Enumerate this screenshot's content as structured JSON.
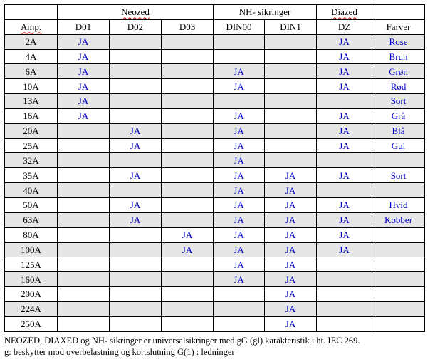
{
  "table": {
    "group_headers": {
      "neozed": "Neozed",
      "nh": "NH- sikringer",
      "diazed": "Diazed"
    },
    "columns": [
      "Amp.",
      "D01",
      "D02",
      "D03",
      "DIN00",
      "DIN1",
      "DZ",
      "Farver"
    ],
    "rows": [
      {
        "cells": [
          "2A",
          "JA",
          "",
          "",
          "",
          "",
          "JA",
          "Rose"
        ]
      },
      {
        "cells": [
          "4A",
          "JA",
          "",
          "",
          "",
          "",
          "JA",
          "Brun"
        ]
      },
      {
        "cells": [
          "6A",
          "JA",
          "",
          "",
          "JA",
          "",
          "JA",
          "Grøn"
        ]
      },
      {
        "cells": [
          "10A",
          "JA",
          "",
          "",
          "JA",
          "",
          "JA",
          "Rød"
        ]
      },
      {
        "cells": [
          "13A",
          "JA",
          "",
          "",
          "",
          "",
          "",
          "Sort"
        ]
      },
      {
        "cells": [
          "16A",
          "JA",
          "",
          "",
          "JA",
          "",
          "JA",
          "Grå"
        ]
      },
      {
        "cells": [
          "20A",
          "",
          "JA",
          "",
          "JA",
          "",
          "JA",
          "Blå"
        ]
      },
      {
        "cells": [
          "25A",
          "",
          "JA",
          "",
          "JA",
          "",
          "JA",
          "Gul"
        ]
      },
      {
        "cells": [
          "32A",
          "",
          "",
          "",
          "JA",
          "",
          "",
          ""
        ]
      },
      {
        "cells": [
          "35A",
          "",
          "JA",
          "",
          "JA",
          "JA",
          "JA",
          "Sort"
        ]
      },
      {
        "cells": [
          "40A",
          "",
          "",
          "",
          "JA",
          "JA",
          "",
          ""
        ]
      },
      {
        "cells": [
          "50A",
          "",
          "JA",
          "",
          "JA",
          "JA",
          "JA",
          "Hvid"
        ]
      },
      {
        "cells": [
          "63A",
          "",
          "JA",
          "",
          "JA",
          "JA",
          "JA",
          "Kobber"
        ]
      },
      {
        "cells": [
          "80A",
          "",
          "",
          "JA",
          "JA",
          "JA",
          "JA",
          ""
        ]
      },
      {
        "cells": [
          "100A",
          "",
          "",
          "JA",
          "JA",
          "JA",
          "JA",
          ""
        ]
      },
      {
        "cells": [
          "125A",
          "",
          "",
          "",
          "JA",
          "JA",
          "",
          ""
        ]
      },
      {
        "cells": [
          "160A",
          "",
          "",
          "",
          "JA",
          "JA",
          "",
          ""
        ]
      },
      {
        "cells": [
          "200A",
          "",
          "",
          "",
          "",
          "JA",
          "",
          ""
        ]
      },
      {
        "cells": [
          "224A",
          "",
          "",
          "",
          "",
          "JA",
          "",
          ""
        ]
      },
      {
        "cells": [
          "250A",
          "",
          "",
          "",
          "",
          "JA",
          "",
          ""
        ]
      }
    ]
  },
  "footnote": {
    "line1": "NEOZED, DIAXED og NH- sikringer er universalsikringer med gG (gl) karakteristik i ht. IEC 269.",
    "line2": "g: beskytter mod overbelastning og kortslutning G(1) : ledninger"
  }
}
